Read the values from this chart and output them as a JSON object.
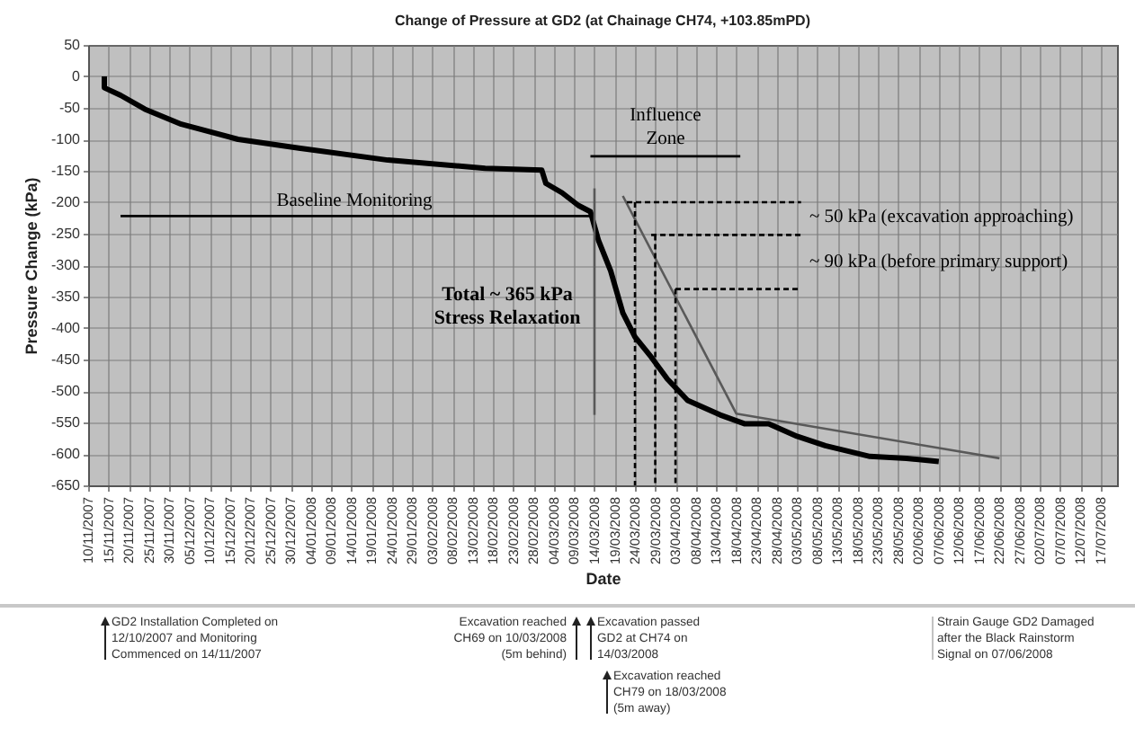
{
  "chart_data": {
    "type": "line",
    "title": "Change of Pressure at GD2 (at Chainage CH74, +103.85mPD)",
    "xlabel": "Date",
    "ylabel": "Pressure Change (kPa)",
    "xlim": [
      "2007-11-10",
      "2008-07-21"
    ],
    "ylim": [
      -650,
      50
    ],
    "yticks": [
      -650,
      -600,
      -550,
      -500,
      -450,
      -400,
      -350,
      -300,
      -250,
      -200,
      -150,
      -100,
      -50,
      0,
      50
    ],
    "xticks": [
      {
        "value": "2007-11-10",
        "label": "10/11/2007"
      },
      {
        "value": "2007-11-15",
        "label": "15/11/2007"
      },
      {
        "value": "2007-11-20",
        "label": "20/11/2007"
      },
      {
        "value": "2007-11-25",
        "label": "25/11/2007"
      },
      {
        "value": "2007-11-30",
        "label": "30/11/2007"
      },
      {
        "value": "2007-12-05",
        "label": "05/12/2007"
      },
      {
        "value": "2007-12-10",
        "label": "10/12/2007"
      },
      {
        "value": "2007-12-15",
        "label": "15/12/2007"
      },
      {
        "value": "2007-12-20",
        "label": "20/12/2007"
      },
      {
        "value": "2007-12-25",
        "label": "25/12/2007"
      },
      {
        "value": "2007-12-30",
        "label": "30/12/2007"
      },
      {
        "value": "2008-01-04",
        "label": "04/01/2008"
      },
      {
        "value": "2008-01-09",
        "label": "09/01/2008"
      },
      {
        "value": "2008-01-14",
        "label": "14/01/2008"
      },
      {
        "value": "2008-01-19",
        "label": "19/01/2008"
      },
      {
        "value": "2008-01-24",
        "label": "24/01/2008"
      },
      {
        "value": "2008-01-29",
        "label": "29/01/2008"
      },
      {
        "value": "2008-02-03",
        "label": "03/02/2008"
      },
      {
        "value": "2008-02-08",
        "label": "08/02/2008"
      },
      {
        "value": "2008-02-13",
        "label": "13/02/2008"
      },
      {
        "value": "2008-02-18",
        "label": "18/02/2008"
      },
      {
        "value": "2008-02-23",
        "label": "23/02/2008"
      },
      {
        "value": "2008-02-28",
        "label": "28/02/2008"
      },
      {
        "value": "2008-03-04",
        "label": "04/03/2008"
      },
      {
        "value": "2008-03-09",
        "label": "09/03/2008"
      },
      {
        "value": "2008-03-14",
        "label": "14/03/2008"
      },
      {
        "value": "2008-03-19",
        "label": "19/03/2008"
      },
      {
        "value": "2008-03-24",
        "label": "24/03/2008"
      },
      {
        "value": "2008-03-29",
        "label": "29/03/2008"
      },
      {
        "value": "2008-04-03",
        "label": "03/04/2008"
      },
      {
        "value": "2008-04-08",
        "label": "08/04/2008"
      },
      {
        "value": "2008-04-13",
        "label": "13/04/2008"
      },
      {
        "value": "2008-04-18",
        "label": "18/04/2008"
      },
      {
        "value": "2008-04-23",
        "label": "23/04/2008"
      },
      {
        "value": "2008-04-28",
        "label": "28/04/2008"
      },
      {
        "value": "2008-05-03",
        "label": "03/05/2008"
      },
      {
        "value": "2008-05-08",
        "label": "08/05/2008"
      },
      {
        "value": "2008-05-13",
        "label": "13/05/2008"
      },
      {
        "value": "2008-05-18",
        "label": "18/05/2008"
      },
      {
        "value": "2008-05-23",
        "label": "23/05/2008"
      },
      {
        "value": "2008-05-28",
        "label": "28/05/2008"
      },
      {
        "value": "2008-06-02",
        "label": "02/06/2008"
      },
      {
        "value": "2008-06-07",
        "label": "07/06/2008"
      },
      {
        "value": "2008-06-12",
        "label": "12/06/2008"
      },
      {
        "value": "2008-06-17",
        "label": "17/06/2008"
      },
      {
        "value": "2008-06-22",
        "label": "22/06/2008"
      },
      {
        "value": "2008-06-27",
        "label": "27/06/2008"
      },
      {
        "value": "2008-07-02",
        "label": "02/07/2008"
      },
      {
        "value": "2008-07-07",
        "label": "07/07/2008"
      },
      {
        "value": "2008-07-12",
        "label": "12/07/2008"
      },
      {
        "value": "2008-07-17",
        "label": "17/07/2008"
      }
    ],
    "grid": true,
    "marker": "none",
    "series": [
      {
        "color": "#000000",
        "x": [
          "2007-11-14",
          "2007-11-14",
          "2007-11-18",
          "2007-11-24",
          "2007-12-03",
          "2007-12-17",
          "2008-01-01",
          "2008-01-23",
          "2008-02-16",
          "2008-03-01",
          "2008-03-02",
          "2008-03-06",
          "2008-03-10",
          "2008-03-13",
          "2008-03-15",
          "2008-03-18",
          "2008-03-21",
          "2008-03-24",
          "2008-03-28",
          "2008-04-01",
          "2008-04-06",
          "2008-04-14",
          "2008-04-20",
          "2008-04-26",
          "2008-05-03",
          "2008-05-10",
          "2008-05-21",
          "2008-05-30",
          "2008-06-07"
        ],
        "values": [
          0,
          -18,
          -30,
          -52,
          -76,
          -100,
          -114,
          -133,
          -146,
          -149,
          -170,
          -185,
          -205,
          -215,
          -261,
          -309,
          -376,
          -414,
          -446,
          -481,
          -515,
          -538,
          -552,
          -552,
          -572,
          -587,
          -604,
          -607,
          -612
        ]
      },
      {
        "color": "#595959",
        "x": [
          "2008-03-21",
          "2008-04-18",
          "2008-06-22"
        ],
        "values": [
          -190,
          -536,
          -607
        ]
      },
      {
        "color": "#000000",
        "x": [
          "2007-11-18",
          "2008-03-13"
        ],
        "values": [
          -222,
          -222
        ]
      },
      {
        "color": "#000000",
        "x": [
          "2008-03-13",
          "2008-04-19"
        ],
        "values": [
          -127,
          -127
        ]
      },
      {
        "color": "#595959",
        "x": [
          "2008-03-14",
          "2008-03-14"
        ],
        "values": [
          -178,
          -538
        ]
      },
      {
        "color": "#000000",
        "line_style": "dashed",
        "x": [
          "2008-03-22",
          "2008-05-04"
        ],
        "values": [
          -200,
          -200
        ]
      },
      {
        "color": "#000000",
        "line_style": "dashed",
        "x": [
          "2008-03-28",
          "2008-05-04"
        ],
        "values": [
          -252,
          -252
        ]
      },
      {
        "color": "#000000",
        "line_style": "dashed",
        "x": [
          "2008-04-03",
          "2008-05-04"
        ],
        "values": [
          -338,
          -338
        ]
      },
      {
        "color": "#000000",
        "line_style": "dashed",
        "x": [
          "2008-03-24",
          "2008-03-24"
        ],
        "values": [
          -200,
          -650
        ]
      },
      {
        "color": "#000000",
        "line_style": "dashed",
        "x": [
          "2008-03-29",
          "2008-03-29"
        ],
        "values": [
          -252,
          -650
        ]
      },
      {
        "color": "#000000",
        "line_style": "dashed",
        "x": [
          "2008-04-03",
          "2008-04-03"
        ],
        "values": [
          -338,
          -650
        ]
      }
    ],
    "annotations": [
      "Baseline Monitoring",
      "Influence\nZone",
      "Total ~ 365 kPa\nStress Relaxation",
      "~ 50 kPa (excavation approaching)",
      "~ 90 kPa (before primary support)",
      "GD2 Installation Completed on\n12/10/2007 and Monitoring\nCommenced on 14/11/2007",
      "Excavation reached\nCH69 on 10/03/2008\n(5m behind)",
      "Excavation passed\nGD2 at CH74 on\n14/03/2008",
      "Excavation reached\nCH79 on 18/03/2008\n(5m away)",
      "Strain Gauge GD2 Damaged\nafter the Black Rainstorm\nSignal on 07/06/2008"
    ]
  }
}
